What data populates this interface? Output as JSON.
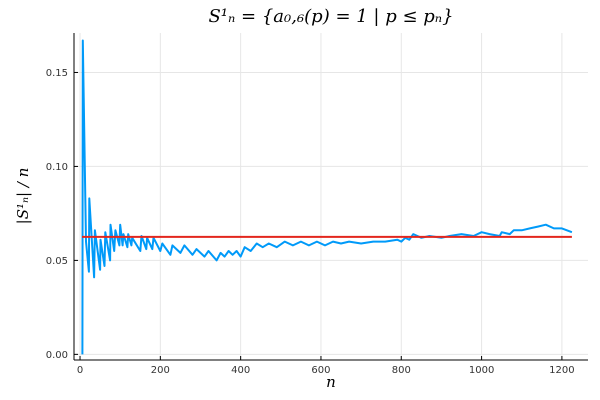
{
  "chart_data": {
    "type": "line",
    "title": "S¹ₙ = {a₀,₆(p) = 1 | p ≤ pₙ}",
    "xlabel": "n",
    "ylabel": "|S¹ₙ| / n",
    "xlim": [
      -15,
      1265
    ],
    "ylim": [
      -0.003,
      0.171
    ],
    "xticks": [
      0,
      200,
      400,
      600,
      800,
      1000,
      1200
    ],
    "xtick_labels": [
      "0",
      "200",
      "400",
      "600",
      "800",
      "1000",
      "1200"
    ],
    "yticks": [
      0.0,
      0.05,
      0.1,
      0.15
    ],
    "ytick_labels": [
      "0.00",
      "0.05",
      "0.10",
      "0.15"
    ],
    "grid": true,
    "series": [
      {
        "color": "#009af9",
        "x": [
          6,
          7,
          15,
          22,
          23,
          35,
          37,
          50,
          51,
          61,
          63,
          75,
          76,
          85,
          88,
          98,
          100,
          106,
          108,
          118,
          120,
          128,
          130,
          150,
          153,
          165,
          167,
          180,
          183,
          200,
          205,
          225,
          230,
          250,
          260,
          280,
          290,
          310,
          320,
          340,
          350,
          360,
          370,
          380,
          390,
          400,
          410,
          425,
          440,
          455,
          470,
          490,
          510,
          530,
          550,
          570,
          590,
          610,
          630,
          650,
          670,
          700,
          730,
          760,
          790,
          800,
          810,
          820,
          830,
          850,
          870,
          900,
          920,
          950,
          980,
          1000,
          1020,
          1045,
          1050,
          1070,
          1080,
          1100,
          1120,
          1140,
          1160,
          1180,
          1200,
          1225
        ],
        "y": [
          0.0,
          0.167,
          0.06,
          0.044,
          0.083,
          0.041,
          0.066,
          0.045,
          0.061,
          0.047,
          0.065,
          0.05,
          0.069,
          0.055,
          0.066,
          0.058,
          0.069,
          0.058,
          0.064,
          0.057,
          0.064,
          0.058,
          0.062,
          0.055,
          0.063,
          0.056,
          0.062,
          0.056,
          0.062,
          0.055,
          0.059,
          0.053,
          0.058,
          0.054,
          0.058,
          0.053,
          0.056,
          0.052,
          0.055,
          0.05,
          0.054,
          0.052,
          0.055,
          0.053,
          0.055,
          0.052,
          0.057,
          0.055,
          0.059,
          0.057,
          0.059,
          0.057,
          0.06,
          0.058,
          0.06,
          0.058,
          0.06,
          0.058,
          0.06,
          0.059,
          0.06,
          0.059,
          0.06,
          0.06,
          0.061,
          0.06,
          0.062,
          0.061,
          0.064,
          0.062,
          0.063,
          0.062,
          0.063,
          0.064,
          0.063,
          0.065,
          0.064,
          0.063,
          0.065,
          0.064,
          0.066,
          0.066,
          0.067,
          0.068,
          0.069,
          0.067,
          0.067,
          0.065
        ]
      },
      {
        "color": "#e3261d",
        "x": [
          5,
          1225
        ],
        "y": [
          0.0625,
          0.0625
        ]
      }
    ]
  }
}
